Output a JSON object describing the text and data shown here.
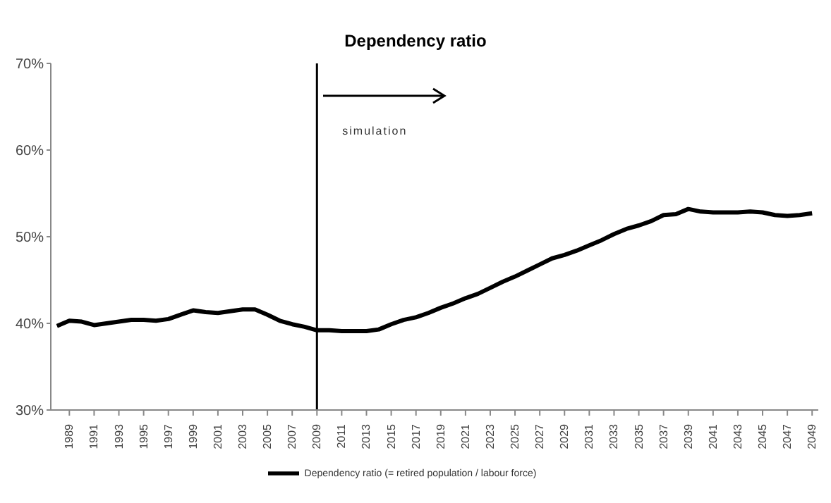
{
  "chart_data": {
    "type": "line",
    "title": "Dependency ratio",
    "x": [
      1988,
      1989,
      1990,
      1991,
      1992,
      1993,
      1994,
      1995,
      1996,
      1997,
      1998,
      1999,
      2000,
      2001,
      2002,
      2003,
      2004,
      2005,
      2006,
      2007,
      2008,
      2009,
      2010,
      2011,
      2012,
      2013,
      2014,
      2015,
      2016,
      2017,
      2018,
      2019,
      2020,
      2021,
      2022,
      2023,
      2024,
      2025,
      2026,
      2027,
      2028,
      2029,
      2030,
      2031,
      2032,
      2033,
      2034,
      2035,
      2036,
      2037,
      2038,
      2039,
      2040,
      2041,
      2042,
      2043,
      2044,
      2045,
      2046,
      2047,
      2048,
      2049
    ],
    "series": [
      {
        "name": "Dependency ratio (= retired population / labour force)",
        "color": "#000000",
        "values": [
          39.7,
          40.3,
          40.2,
          39.8,
          40.0,
          40.2,
          40.4,
          40.4,
          40.3,
          40.5,
          41.0,
          41.5,
          41.3,
          41.2,
          41.4,
          41.6,
          41.6,
          41.0,
          40.3,
          39.9,
          39.6,
          39.2,
          39.2,
          39.1,
          39.1,
          39.1,
          39.3,
          39.9,
          40.4,
          40.7,
          41.2,
          41.8,
          42.3,
          42.9,
          43.4,
          44.1,
          44.8,
          45.4,
          46.1,
          46.8,
          47.5,
          47.9,
          48.4,
          49.0,
          49.6,
          50.3,
          50.9,
          51.3,
          51.8,
          52.5,
          52.6,
          53.2,
          52.9,
          52.8,
          52.8,
          52.8,
          52.9,
          52.8,
          52.5,
          52.4,
          52.5,
          52.7
        ]
      }
    ],
    "xlim": [
      1987.5,
      2049.5
    ],
    "xticks": [
      1989,
      1991,
      1993,
      1995,
      1997,
      1999,
      2001,
      2003,
      2005,
      2007,
      2009,
      2011,
      2013,
      2015,
      2017,
      2019,
      2021,
      2023,
      2025,
      2027,
      2029,
      2031,
      2033,
      2035,
      2037,
      2039,
      2041,
      2043,
      2045,
      2047,
      2049
    ],
    "ylim": [
      30,
      70
    ],
    "yticks": [
      {
        "value": 30,
        "label": "30%"
      },
      {
        "value": 40,
        "label": "40%"
      },
      {
        "value": 50,
        "label": "50%"
      },
      {
        "value": 60,
        "label": "60%"
      },
      {
        "value": 70,
        "label": "70%"
      }
    ],
    "ref_lines": [
      {
        "axis": "x",
        "value": 2009,
        "label": "simulation",
        "color": "#000000"
      }
    ],
    "grid": false,
    "legend": "bottom",
    "marker": "none",
    "line_style": "solid"
  }
}
